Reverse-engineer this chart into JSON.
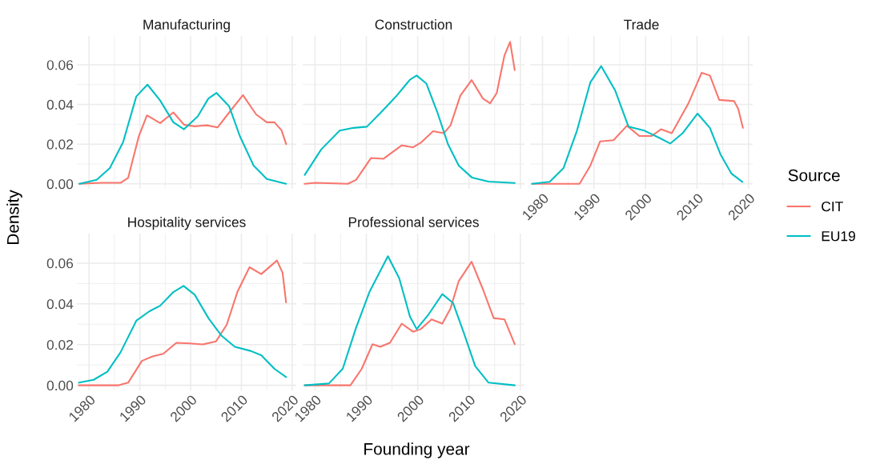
{
  "chart_data": [
    {
      "type": "line",
      "title": "Manufacturing",
      "ylabel": "Density",
      "tick_labels": "y",
      "grid": true,
      "legend": "right",
      "legend_title": "Source",
      "xlim": [
        1977.6,
        2020.8
      ],
      "ylim": [
        -0.0025,
        0.0745
      ],
      "xticks": [
        1980,
        1990,
        2000,
        2010,
        2020
      ],
      "yticks": [
        {
          "value": 0,
          "label": "0.00"
        },
        {
          "value": 0.02,
          "label": "0.02"
        },
        {
          "value": 0.04,
          "label": "0.04"
        },
        {
          "value": 0.06,
          "label": "0.06"
        }
      ],
      "series": [
        {
          "name": "CIT",
          "color": "#f8766d",
          "x": [
            1978.1,
            1982.5,
            1986.2,
            1987.7,
            1989.8,
            1991.4,
            1994.0,
            1996.6,
            1998.7,
            2000.8,
            2003.2,
            2005.3,
            2007.6,
            2010.3,
            2012.9,
            2015.0,
            2016.5,
            2017.9,
            2018.8
          ],
          "values": [
            0,
            0.0005,
            0.0005,
            0.003,
            0.024,
            0.0345,
            0.0306,
            0.036,
            0.0298,
            0.029,
            0.0295,
            0.0284,
            0.036,
            0.0447,
            0.035,
            0.031,
            0.031,
            0.027,
            0.02
          ]
        },
        {
          "name": "EU19",
          "color": "#00bfc4",
          "x": [
            1978.1,
            1981.5,
            1984.1,
            1986.7,
            1989.3,
            1991.5,
            1994.0,
            1996.6,
            1998.7,
            2001.4,
            2003.5,
            2005.1,
            2007.6,
            2009.7,
            2012.4,
            2015.0,
            2018.8
          ],
          "values": [
            0,
            0.002,
            0.008,
            0.021,
            0.044,
            0.05,
            0.042,
            0.031,
            0.0275,
            0.034,
            0.043,
            0.0458,
            0.039,
            0.024,
            0.0092,
            0.0024,
            0
          ]
        }
      ]
    },
    {
      "type": "line",
      "title": "Construction",
      "tick_labels": false,
      "grid": true,
      "xlim": [
        1977.6,
        2020.8
      ],
      "ylim": [
        -0.0025,
        0.0745
      ],
      "xticks": [
        1980,
        1990,
        2000,
        2010,
        2020
      ],
      "yticks": [
        {
          "value": 0,
          "label": "0.00"
        },
        {
          "value": 0.02,
          "label": "0.02"
        },
        {
          "value": 0.04,
          "label": "0.04"
        },
        {
          "value": 0.06,
          "label": "0.06"
        }
      ],
      "series": [
        {
          "name": "CIT",
          "color": "#f8766d",
          "x": [
            1978.0,
            1980.1,
            1986.4,
            1988.0,
            1990.9,
            1993.3,
            1996.9,
            1999.1,
            2000.6,
            2003.0,
            2005.1,
            2006.4,
            2008.3,
            2010.5,
            2012.7,
            2014.1,
            2015.4,
            2016.9,
            2018.0,
            2018.9
          ],
          "values": [
            0,
            0.0005,
            0,
            0.002,
            0.013,
            0.0126,
            0.0194,
            0.0184,
            0.0207,
            0.0265,
            0.0255,
            0.0295,
            0.0444,
            0.0523,
            0.043,
            0.0406,
            0.0458,
            0.0647,
            0.0715,
            0.0573
          ]
        },
        {
          "name": "EU19",
          "color": "#00bfc4",
          "x": [
            1978.0,
            1981.2,
            1984.8,
            1987.5,
            1990.1,
            1992.7,
            1995.9,
            1998.5,
            1999.8,
            2001.7,
            2003.8,
            2005.9,
            2008.0,
            2010.6,
            2013.8,
            2018.9
          ],
          "values": [
            0.0045,
            0.0173,
            0.0268,
            0.0282,
            0.0288,
            0.0356,
            0.0444,
            0.0525,
            0.0546,
            0.0505,
            0.0363,
            0.02,
            0.0092,
            0.0031,
            0.0011,
            0.0004
          ]
        }
      ]
    },
    {
      "type": "line",
      "title": "Trade",
      "tick_labels": "x",
      "grid": true,
      "xlim": [
        1977.6,
        2020.8
      ],
      "ylim": [
        -0.0025,
        0.0745
      ],
      "xticks": [
        1980,
        1990,
        2000,
        2010,
        2020
      ],
      "yticks": [
        {
          "value": 0,
          "label": "0.00"
        },
        {
          "value": 0.02,
          "label": "0.02"
        },
        {
          "value": 0.04,
          "label": "0.04"
        },
        {
          "value": 0.06,
          "label": "0.06"
        }
      ],
      "series": [
        {
          "name": "CIT",
          "color": "#f8766d",
          "x": [
            1978.0,
            1987.2,
            1989.3,
            1991.2,
            1993.8,
            1996.4,
            1998.8,
            2001.2,
            2003.0,
            2005.1,
            2008.3,
            2010.9,
            2012.5,
            2014.3,
            2017.2,
            2018.0,
            2018.9
          ],
          "values": [
            0,
            0,
            0.0092,
            0.0214,
            0.022,
            0.0293,
            0.0241,
            0.0241,
            0.0275,
            0.0255,
            0.0404,
            0.056,
            0.0546,
            0.0423,
            0.0417,
            0.0377,
            0.0282
          ]
        },
        {
          "name": "EU19",
          "color": "#00bfc4",
          "x": [
            1978.0,
            1981.4,
            1984.1,
            1986.7,
            1989.3,
            1991.4,
            1994.1,
            1996.7,
            1999.8,
            2002.5,
            2004.8,
            2007.2,
            2010.1,
            2012.5,
            2014.6,
            2016.7,
            2018.8
          ],
          "values": [
            0,
            0.001,
            0.008,
            0.0268,
            0.0512,
            0.0593,
            0.0471,
            0.0288,
            0.0268,
            0.0234,
            0.0203,
            0.0255,
            0.0354,
            0.0282,
            0.0146,
            0.0051,
            0.001
          ]
        }
      ]
    },
    {
      "type": "line",
      "title": "Hospitality services",
      "grid": true,
      "xlim": [
        1977.6,
        2020.8
      ],
      "ylim": [
        -0.0025,
        0.0745
      ],
      "xticks": [
        1980,
        1990,
        2000,
        2010,
        2020
      ],
      "yticks": [
        {
          "value": 0,
          "label": "0.00"
        },
        {
          "value": 0.02,
          "label": "0.02"
        },
        {
          "value": 0.04,
          "label": "0.04"
        },
        {
          "value": 0.06,
          "label": "0.06"
        }
      ],
      "series": [
        {
          "name": "CIT",
          "color": "#f8766d",
          "x": [
            1978.0,
            1985.7,
            1987.7,
            1990.4,
            1992.5,
            1994.6,
            1997.2,
            1999.8,
            2002.4,
            2005.0,
            2007.1,
            2009.2,
            2011.6,
            2013.9,
            2017.0,
            2018.1,
            2018.8
          ],
          "values": [
            0,
            0,
            0.0013,
            0.012,
            0.0142,
            0.0155,
            0.0209,
            0.0206,
            0.0201,
            0.0216,
            0.0297,
            0.0458,
            0.058,
            0.0546,
            0.0613,
            0.0553,
            0.0407
          ]
        },
        {
          "name": "EU19",
          "color": "#00bfc4",
          "x": [
            1978.0,
            1980.9,
            1983.6,
            1986.2,
            1989.3,
            1991.9,
            1994.0,
            1996.6,
            1998.6,
            2000.8,
            2003.5,
            2006.1,
            2008.7,
            2011.8,
            2013.9,
            2016.5,
            2018.8
          ],
          "values": [
            0.0013,
            0.0027,
            0.0067,
            0.0162,
            0.0317,
            0.0364,
            0.0391,
            0.0458,
            0.0488,
            0.0445,
            0.033,
            0.0243,
            0.0189,
            0.0169,
            0.0148,
            0.0081,
            0.004
          ]
        }
      ]
    },
    {
      "type": "line",
      "title": "Professional services",
      "xlabel": "Founding year",
      "tick_labels": "x",
      "grid": true,
      "xlim": [
        1977.6,
        2020.8
      ],
      "ylim": [
        -0.0025,
        0.0745
      ],
      "xticks": [
        1980,
        1990,
        2000,
        2010,
        2020
      ],
      "yticks": [
        {
          "value": 0,
          "label": "0.00"
        },
        {
          "value": 0.02,
          "label": "0.02"
        },
        {
          "value": 0.04,
          "label": "0.04"
        },
        {
          "value": 0.06,
          "label": "0.06"
        }
      ],
      "series": [
        {
          "name": "CIT",
          "color": "#f8766d",
          "x": [
            1978.0,
            1986.9,
            1989.1,
            1991.2,
            1992.7,
            1994.6,
            1996.9,
            1999.1,
            2000.6,
            2002.7,
            2004.8,
            2006.4,
            2008.0,
            2010.5,
            2012.7,
            2014.8,
            2016.9,
            2018.9
          ],
          "values": [
            0,
            0,
            0.0081,
            0.0202,
            0.0189,
            0.0209,
            0.0303,
            0.0263,
            0.0276,
            0.0324,
            0.0303,
            0.0378,
            0.0512,
            0.0607,
            0.0472,
            0.033,
            0.0324,
            0.0202
          ]
        },
        {
          "name": "EU19",
          "color": "#00bfc4",
          "x": [
            1978.0,
            1982.7,
            1985.4,
            1988.0,
            1990.6,
            1994.2,
            1996.4,
            1998.5,
            1999.8,
            2002.2,
            2004.8,
            2006.9,
            2009.0,
            2011.2,
            2013.8,
            2018.9
          ],
          "values": [
            0,
            0.0009,
            0.0081,
            0.0283,
            0.0458,
            0.0634,
            0.0526,
            0.0337,
            0.0276,
            0.0351,
            0.0448,
            0.0404,
            0.0256,
            0.0094,
            0.0013,
            0
          ]
        }
      ]
    }
  ]
}
